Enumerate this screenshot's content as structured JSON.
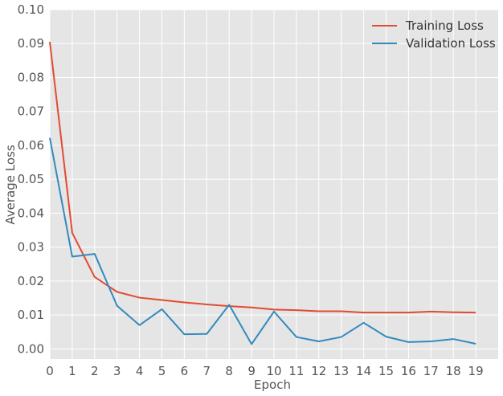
{
  "chart_data": {
    "type": "line",
    "title": "",
    "xlabel": "Epoch",
    "ylabel": "Average Loss",
    "x": [
      0,
      1,
      2,
      3,
      4,
      5,
      6,
      7,
      8,
      9,
      10,
      11,
      12,
      13,
      14,
      15,
      16,
      17,
      18,
      19
    ],
    "xticks": [
      "0",
      "1",
      "2",
      "3",
      "4",
      "5",
      "6",
      "7",
      "8",
      "9",
      "10",
      "11",
      "12",
      "13",
      "14",
      "15",
      "16",
      "17",
      "18",
      "19"
    ],
    "xlim": [
      0,
      20
    ],
    "ylim": [
      -0.003,
      0.1
    ],
    "yticks": [
      "0.00",
      "0.01",
      "0.02",
      "0.03",
      "0.04",
      "0.05",
      "0.06",
      "0.07",
      "0.08",
      "0.09",
      "0.10"
    ],
    "ytick_values": [
      0,
      0.01,
      0.02,
      0.03,
      0.04,
      0.05,
      0.06,
      0.07,
      0.08,
      0.09,
      0.1
    ],
    "grid": true,
    "legend_position": "top-right",
    "series": [
      {
        "name": "Training Loss",
        "color": "#E24A33",
        "values": [
          0.0905,
          0.0342,
          0.0212,
          0.0168,
          0.0151,
          0.0144,
          0.0137,
          0.0131,
          0.0126,
          0.0122,
          0.0116,
          0.0114,
          0.0111,
          0.0111,
          0.0107,
          0.0107,
          0.0107,
          0.011,
          0.0108,
          0.0107
        ]
      },
      {
        "name": "Validation Loss",
        "color": "#348ABD",
        "values": [
          0.0622,
          0.0272,
          0.028,
          0.0127,
          0.007,
          0.0117,
          0.0043,
          0.0044,
          0.013,
          0.0014,
          0.011,
          0.0035,
          0.0022,
          0.0035,
          0.0077,
          0.0036,
          0.002,
          0.0022,
          0.0029,
          0.0015
        ]
      }
    ]
  }
}
